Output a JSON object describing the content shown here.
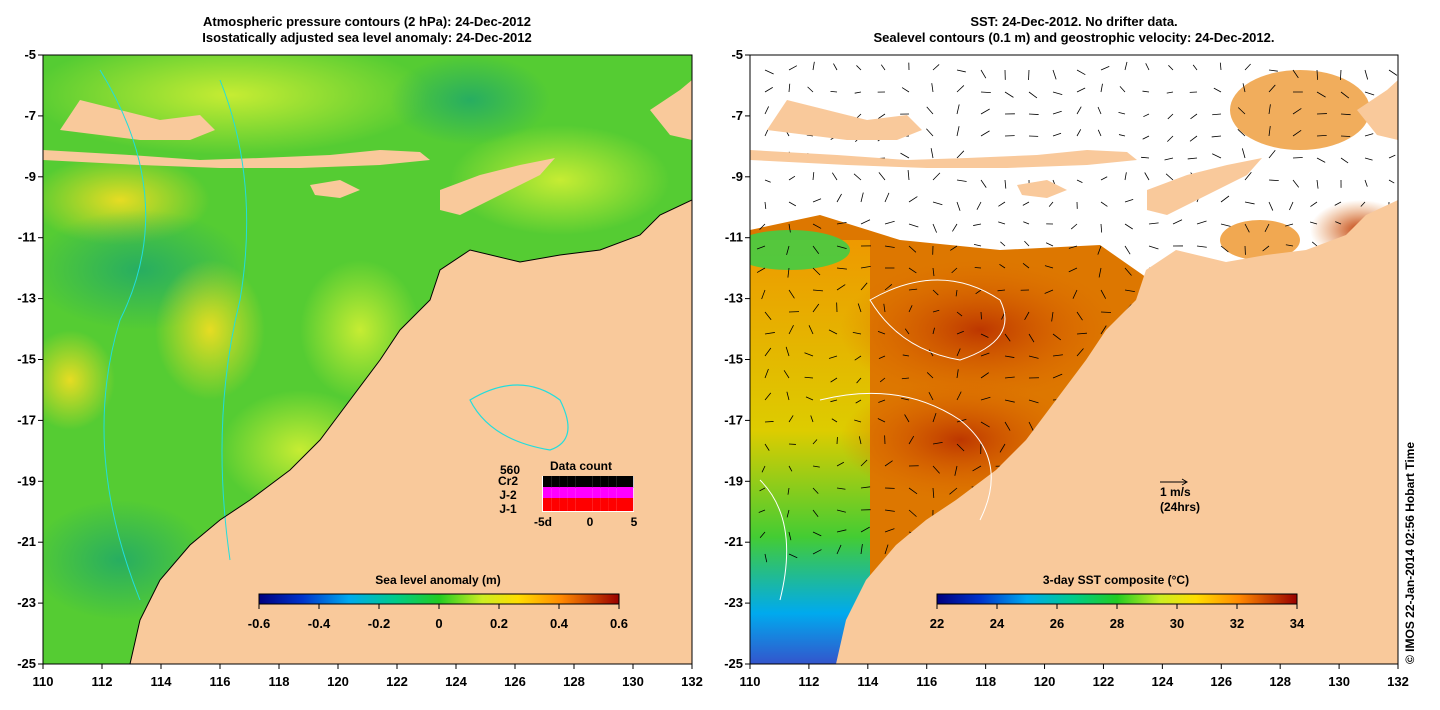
{
  "left_panel": {
    "title_line1": "Atmospheric pressure contours (2 hPa): 24-Dec-2012",
    "title_line2": "Isostatically adjusted sea level anomaly: 24-Dec-2012",
    "colorbar": {
      "label": "Sea level anomaly (m)",
      "ticks": [
        "-0.6",
        "-0.4",
        "-0.2",
        "0",
        "0.2",
        "0.4",
        "0.6"
      ],
      "range": [
        -0.6,
        0.6
      ]
    },
    "data_count": {
      "title": "Data count",
      "count_value": "560",
      "missions": [
        {
          "name": "Cr2",
          "color": "#000000"
        },
        {
          "name": "J-2",
          "color": "#ff00ff"
        },
        {
          "name": "J-1",
          "color": "#ff0000"
        }
      ],
      "axis_ticks": [
        "-5d",
        "0",
        "5"
      ]
    }
  },
  "right_panel": {
    "title_line1": "SST: 24-Dec-2012. No drifter data.",
    "title_line2": "Sealevel contours (0.1 m) and geostrophic velocity: 24-Dec-2012.",
    "colorbar": {
      "label": "3-day SST composite (°C)",
      "ticks": [
        "22",
        "24",
        "26",
        "28",
        "30",
        "32",
        "34"
      ],
      "range": [
        22,
        34
      ]
    },
    "velocity_legend": {
      "line1": "1 m/s",
      "line2": "(24hrs)"
    }
  },
  "axes": {
    "lon_ticks": [
      "110",
      "112",
      "114",
      "116",
      "118",
      "120",
      "122",
      "124",
      "126",
      "128",
      "130",
      "132"
    ],
    "lat_ticks": [
      "-5",
      "-7",
      "-9",
      "-11",
      "-13",
      "-15",
      "-17",
      "-19",
      "-21",
      "-23",
      "-25"
    ],
    "lon_range": [
      110,
      132
    ],
    "lat_range": [
      -25,
      -5
    ]
  },
  "credit": "© IMOS 22-Jan-2014 02:56 Hobart Time",
  "colors": {
    "land": "#f9c99b",
    "sla_base": "#33cc33",
    "sst_warm": "#cc5500",
    "contour_cyan": "#22dddd"
  }
}
